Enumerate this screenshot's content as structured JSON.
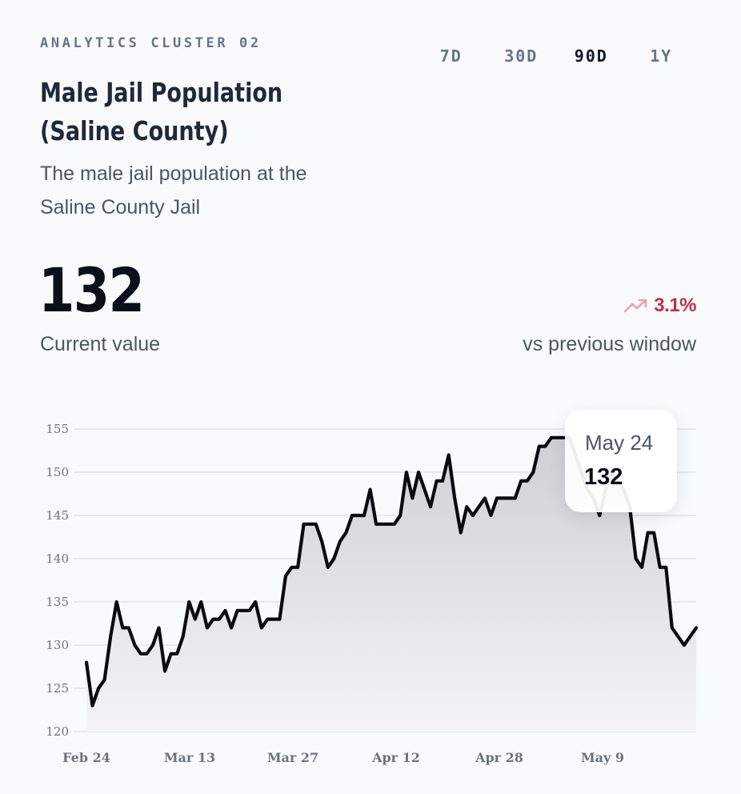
{
  "header": {
    "eyebrow": "ANALYTICS CLUSTER 02",
    "title": "Male Jail Population (Saline County)",
    "subtitle": "The male jail population at the Saline County Jail"
  },
  "ranges": [
    {
      "label": "7D",
      "active": false
    },
    {
      "label": "30D",
      "active": false
    },
    {
      "label": "90D",
      "active": true
    },
    {
      "label": "1Y",
      "active": false
    }
  ],
  "kpi": {
    "value": "132",
    "value_label": "Current value",
    "change": "3.1%",
    "change_icon": "trending-up-icon",
    "change_label": "vs previous window"
  },
  "tooltip": {
    "date": "May 24",
    "value": "132"
  },
  "colors": {
    "line": "#0b0b0f",
    "change": "#c0313f",
    "change_icon": "#e7a4aa"
  },
  "chart_data": {
    "type": "area",
    "ylim": [
      120,
      155
    ],
    "yticks": [
      120,
      125,
      130,
      135,
      140,
      145,
      150,
      155
    ],
    "xticks": [
      "Feb 24",
      "Mar 13",
      "Mar 27",
      "Apr 12",
      "Apr 28",
      "May 9"
    ],
    "grid": true,
    "start_date": "Feb 24",
    "end_date": "May 24",
    "values": [
      128,
      123,
      125,
      126,
      131,
      135,
      132,
      132,
      130,
      129,
      129,
      130,
      132,
      127,
      129,
      129,
      131,
      135,
      133,
      135,
      132,
      133,
      133,
      134,
      132,
      134,
      134,
      134,
      135,
      132,
      133,
      133,
      133,
      138,
      139,
      139,
      144,
      144,
      144,
      142,
      139,
      140,
      142,
      143,
      145,
      145,
      145,
      148,
      144,
      144,
      144,
      144,
      145,
      150,
      147,
      150,
      148,
      146,
      149,
      149,
      152,
      147,
      143,
      146,
      145,
      146,
      147,
      145,
      147,
      147,
      147,
      147,
      149,
      149,
      150,
      153,
      153,
      154,
      154,
      154,
      154,
      152,
      150,
      148,
      147,
      145,
      148,
      150,
      149,
      148,
      146,
      140,
      139,
      143,
      143,
      139,
      139,
      132,
      131,
      130,
      131,
      132
    ]
  }
}
